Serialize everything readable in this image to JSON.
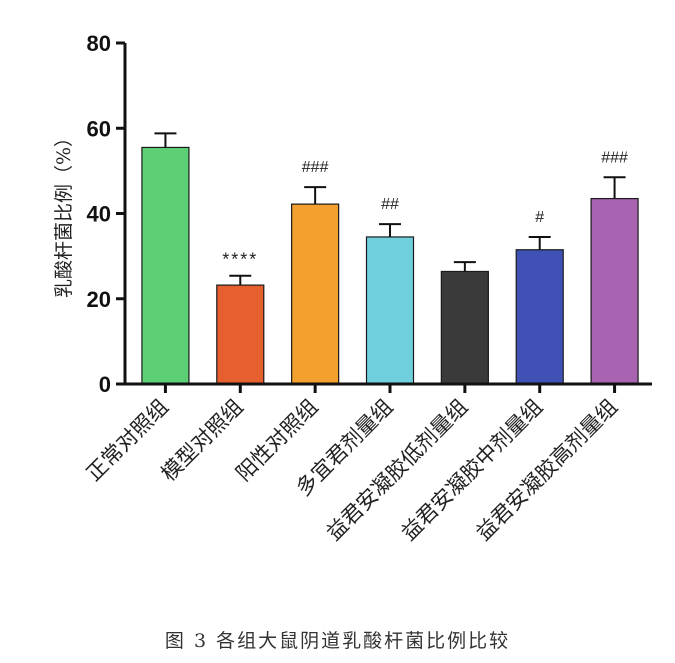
{
  "figure": {
    "caption": "图 3  各组大鼠阴道乳酸杆菌比例比较"
  },
  "chart_data": {
    "type": "bar",
    "title": "",
    "xlabel": "",
    "ylabel": "乳酸杆菌比例（%）",
    "ylim": [
      0,
      80
    ],
    "yticks": [
      0,
      20,
      40,
      60,
      80
    ],
    "categories": [
      "正常对照组",
      "模型对照组",
      "阳性对照组",
      "多宜君剂量组",
      "益君安凝胶低剂量组",
      "益君安凝胶中剂量组",
      "益君安凝胶高剂量组"
    ],
    "values": [
      55.5,
      23.2,
      42.2,
      34.5,
      26.4,
      31.5,
      43.5
    ],
    "errors": [
      3.3,
      2.2,
      4.0,
      3.0,
      2.2,
      3.0,
      5.0
    ],
    "annotations": [
      "",
      "****",
      "###",
      "##",
      "",
      "#",
      "###"
    ],
    "colors": [
      "#5dcf75",
      "#e6602f",
      "#f3a02e",
      "#6fcfdc",
      "#3a3a3a",
      "#3f51b5",
      "#a864b0"
    ],
    "grid": false,
    "legend": "none"
  }
}
